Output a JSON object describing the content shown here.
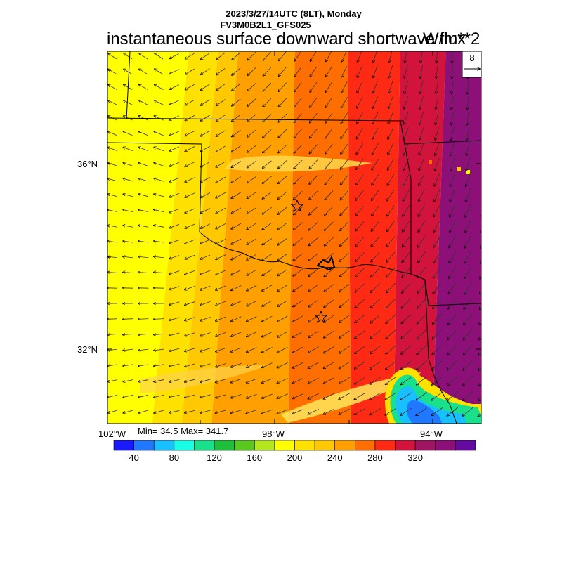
{
  "header": {
    "line1": "2023/3/27/14UTC (8LT), Monday",
    "line2": "FV3M0B2L1_GFS025",
    "title": "instantaneous surface downward shortwave flux",
    "units": "W/m**2"
  },
  "vector_reference": {
    "value": "8"
  },
  "axes": {
    "lat_labels": [
      "36°N",
      "32°N"
    ],
    "lon_labels": [
      "102°W",
      "98°W",
      "94°W"
    ]
  },
  "stats": {
    "text": "Min= 34.5 Max= 341.7"
  },
  "colorbar": {
    "colors": [
      "#1a1aff",
      "#1f78ff",
      "#19c0ff",
      "#19ffe6",
      "#19e08a",
      "#1ebf3a",
      "#5ac81e",
      "#b4e61e",
      "#ffff00",
      "#ffe100",
      "#ffc800",
      "#ffa000",
      "#ff6e00",
      "#ff2a14",
      "#d2143c",
      "#a01464",
      "#8c1078",
      "#640aa0"
    ],
    "labels": [
      "40",
      "80",
      "120",
      "160",
      "200",
      "240",
      "280",
      "320"
    ]
  },
  "map": {
    "bands": [
      {
        "value": 190,
        "color": "#ffff00"
      },
      {
        "value": 210,
        "color": "#ffe100"
      },
      {
        "value": 225,
        "color": "#ffc800"
      },
      {
        "value": 245,
        "color": "#ffa000"
      },
      {
        "value": 265,
        "color": "#ff6e00"
      },
      {
        "value": 285,
        "color": "#ff2a14"
      },
      {
        "value": 305,
        "color": "#d2143c"
      },
      {
        "value": 330,
        "color": "#8c1078"
      }
    ],
    "cities": [
      "star",
      "star"
    ]
  }
}
